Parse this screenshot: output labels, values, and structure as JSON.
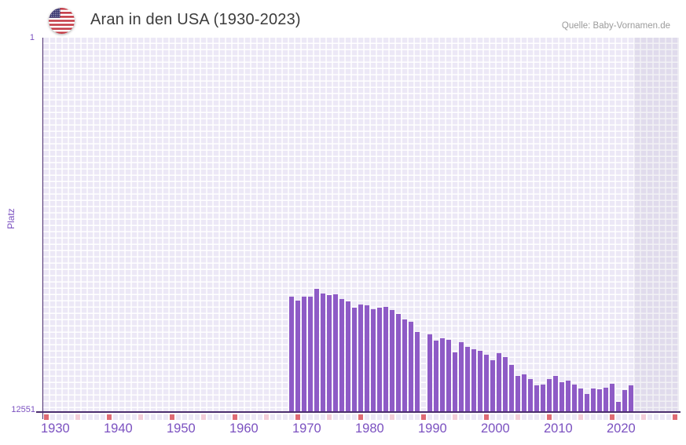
{
  "header": {
    "title": "Aran in den USA (1930-2023)",
    "source": "Quelle: Baby-Vornamen.de",
    "flag_icon": "us-flag-icon"
  },
  "colors": {
    "bar": "#8e5bc6",
    "axis_line": "#4b2e6e",
    "axis_label": "#7b51c0",
    "grid_cell": "#ece8f6",
    "grid_line": "#ffffff",
    "decade_tick": "#df6b74",
    "half_decade_tick": "#f3cdd8",
    "future_band": "rgba(90,80,125,0.08)",
    "title_text": "#3c3c3c",
    "source_text": "#9b9b9b"
  },
  "chart_data": {
    "type": "bar",
    "title": "Aran in den USA (1930-2023)",
    "xlabel": "",
    "ylabel": "Platz",
    "grid": true,
    "legend": false,
    "y_axis": {
      "min": 1,
      "max": 12551,
      "inverted": true,
      "tick_labels": [
        "1",
        "12551"
      ]
    },
    "x_axis": {
      "first_year": 1930,
      "last_year": 2030,
      "tick_labels": [
        "1930",
        "1940",
        "1950",
        "1960",
        "1970",
        "1980",
        "1990",
        "2000",
        "2010",
        "2020"
      ],
      "decade_marks": [
        1930,
        1940,
        1950,
        1960,
        1970,
        1980,
        1990,
        2000,
        2010,
        2020,
        2030
      ],
      "half_decade_marks": [
        1935,
        1945,
        1955,
        1965,
        1975,
        1985,
        1995,
        2005,
        2015,
        2025
      ]
    },
    "future_band": {
      "from_year": 2024,
      "to_year": 2030
    },
    "series": [
      {
        "name": "Platz",
        "years": [
          1969,
          1970,
          1971,
          1972,
          1973,
          1974,
          1975,
          1976,
          1977,
          1978,
          1979,
          1980,
          1981,
          1982,
          1983,
          1984,
          1985,
          1986,
          1987,
          1988,
          1989,
          1990,
          1991,
          1992,
          1993,
          1994,
          1995,
          1996,
          1997,
          1998,
          1999,
          2000,
          2001,
          2002,
          2003,
          2004,
          2005,
          2006,
          2007,
          2008,
          2009,
          2010,
          2011,
          2012,
          2013,
          2014,
          2015,
          2016,
          2017,
          2018,
          2019,
          2020,
          2021,
          2022,
          2023
        ],
        "ranks": [
          8700,
          8840,
          8690,
          8690,
          8450,
          8600,
          8640,
          8610,
          8790,
          8850,
          9070,
          8960,
          8990,
          9130,
          9060,
          9040,
          9150,
          9280,
          9460,
          9550,
          9900,
          null,
          9960,
          10180,
          10100,
          10140,
          10560,
          10230,
          10400,
          10470,
          10530,
          10650,
          10840,
          10610,
          10730,
          11000,
          11370,
          11310,
          11480,
          11680,
          11660,
          11460,
          11370,
          11580,
          11530,
          11660,
          11790,
          11960,
          11790,
          11810,
          11760,
          11640,
          12230,
          11830,
          11670
        ]
      }
    ]
  }
}
